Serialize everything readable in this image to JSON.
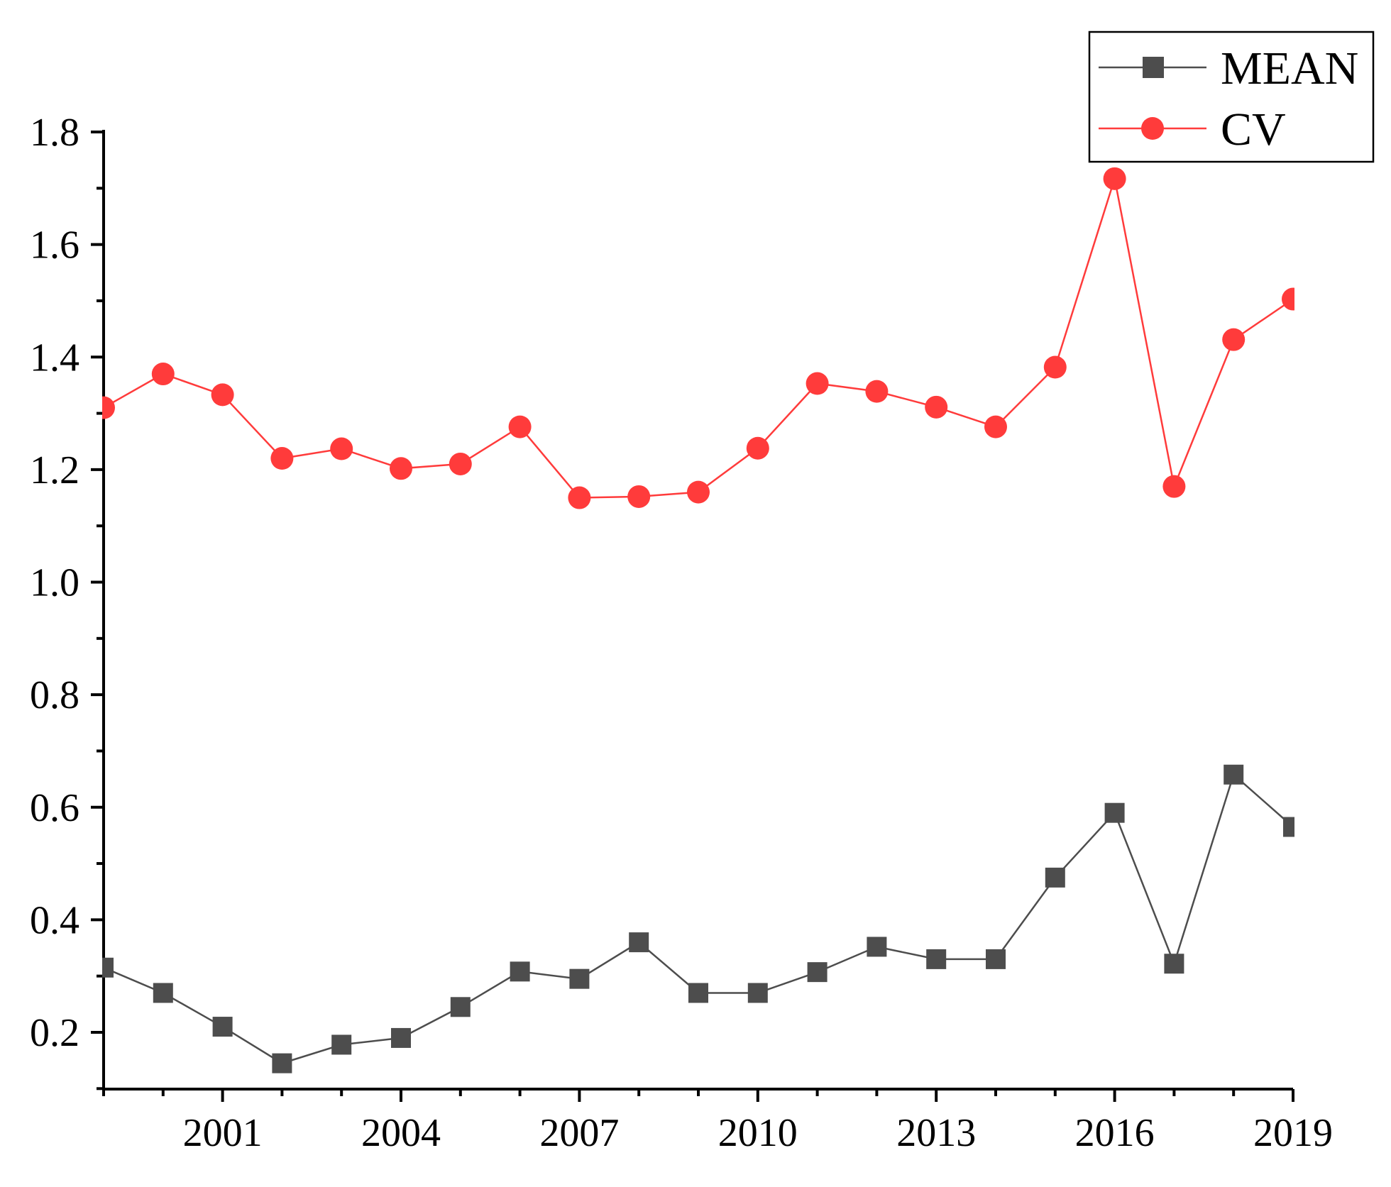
{
  "chart_data": {
    "type": "line",
    "title": "",
    "xlabel": "",
    "ylabel": "",
    "xlim": [
      1999,
      2019
    ],
    "ylim": [
      0.1,
      1.8
    ],
    "x": [
      1999,
      2000,
      2001,
      2002,
      2003,
      2004,
      2005,
      2006,
      2007,
      2008,
      2009,
      2010,
      2011,
      2012,
      2013,
      2014,
      2015,
      2016,
      2017,
      2018,
      2019
    ],
    "x_tick_labels": [
      "2001",
      "2004",
      "2007",
      "2010",
      "2013",
      "2016",
      "2019"
    ],
    "x_tick_values": [
      2001,
      2004,
      2007,
      2010,
      2013,
      2016,
      2019
    ],
    "y_tick_labels": [
      "0.2",
      "0.4",
      "0.6",
      "0.8",
      "1.0",
      "1.2",
      "1.4",
      "1.6",
      "1.8"
    ],
    "y_tick_values": [
      0.2,
      0.4,
      0.6,
      0.8,
      1.0,
      1.2,
      1.4,
      1.6,
      1.8
    ],
    "grid": false,
    "legend_position": "top-right",
    "series": [
      {
        "name": "MEAN",
        "color": "#4d4d4d",
        "marker": "square",
        "values": [
          0.315,
          0.27,
          0.21,
          0.145,
          0.178,
          0.19,
          0.245,
          0.308,
          0.295,
          0.36,
          0.27,
          0.27,
          0.307,
          0.352,
          0.33,
          0.33,
          0.475,
          0.59,
          0.322,
          0.658,
          0.565
        ]
      },
      {
        "name": "CV",
        "color": "#ff3b3b",
        "marker": "circle",
        "values": [
          1.31,
          1.37,
          1.333,
          1.22,
          1.237,
          1.202,
          1.21,
          1.276,
          1.15,
          1.152,
          1.16,
          1.238,
          1.353,
          1.339,
          1.311,
          1.276,
          1.382,
          1.717,
          1.17,
          1.431,
          1.503
        ]
      }
    ]
  }
}
